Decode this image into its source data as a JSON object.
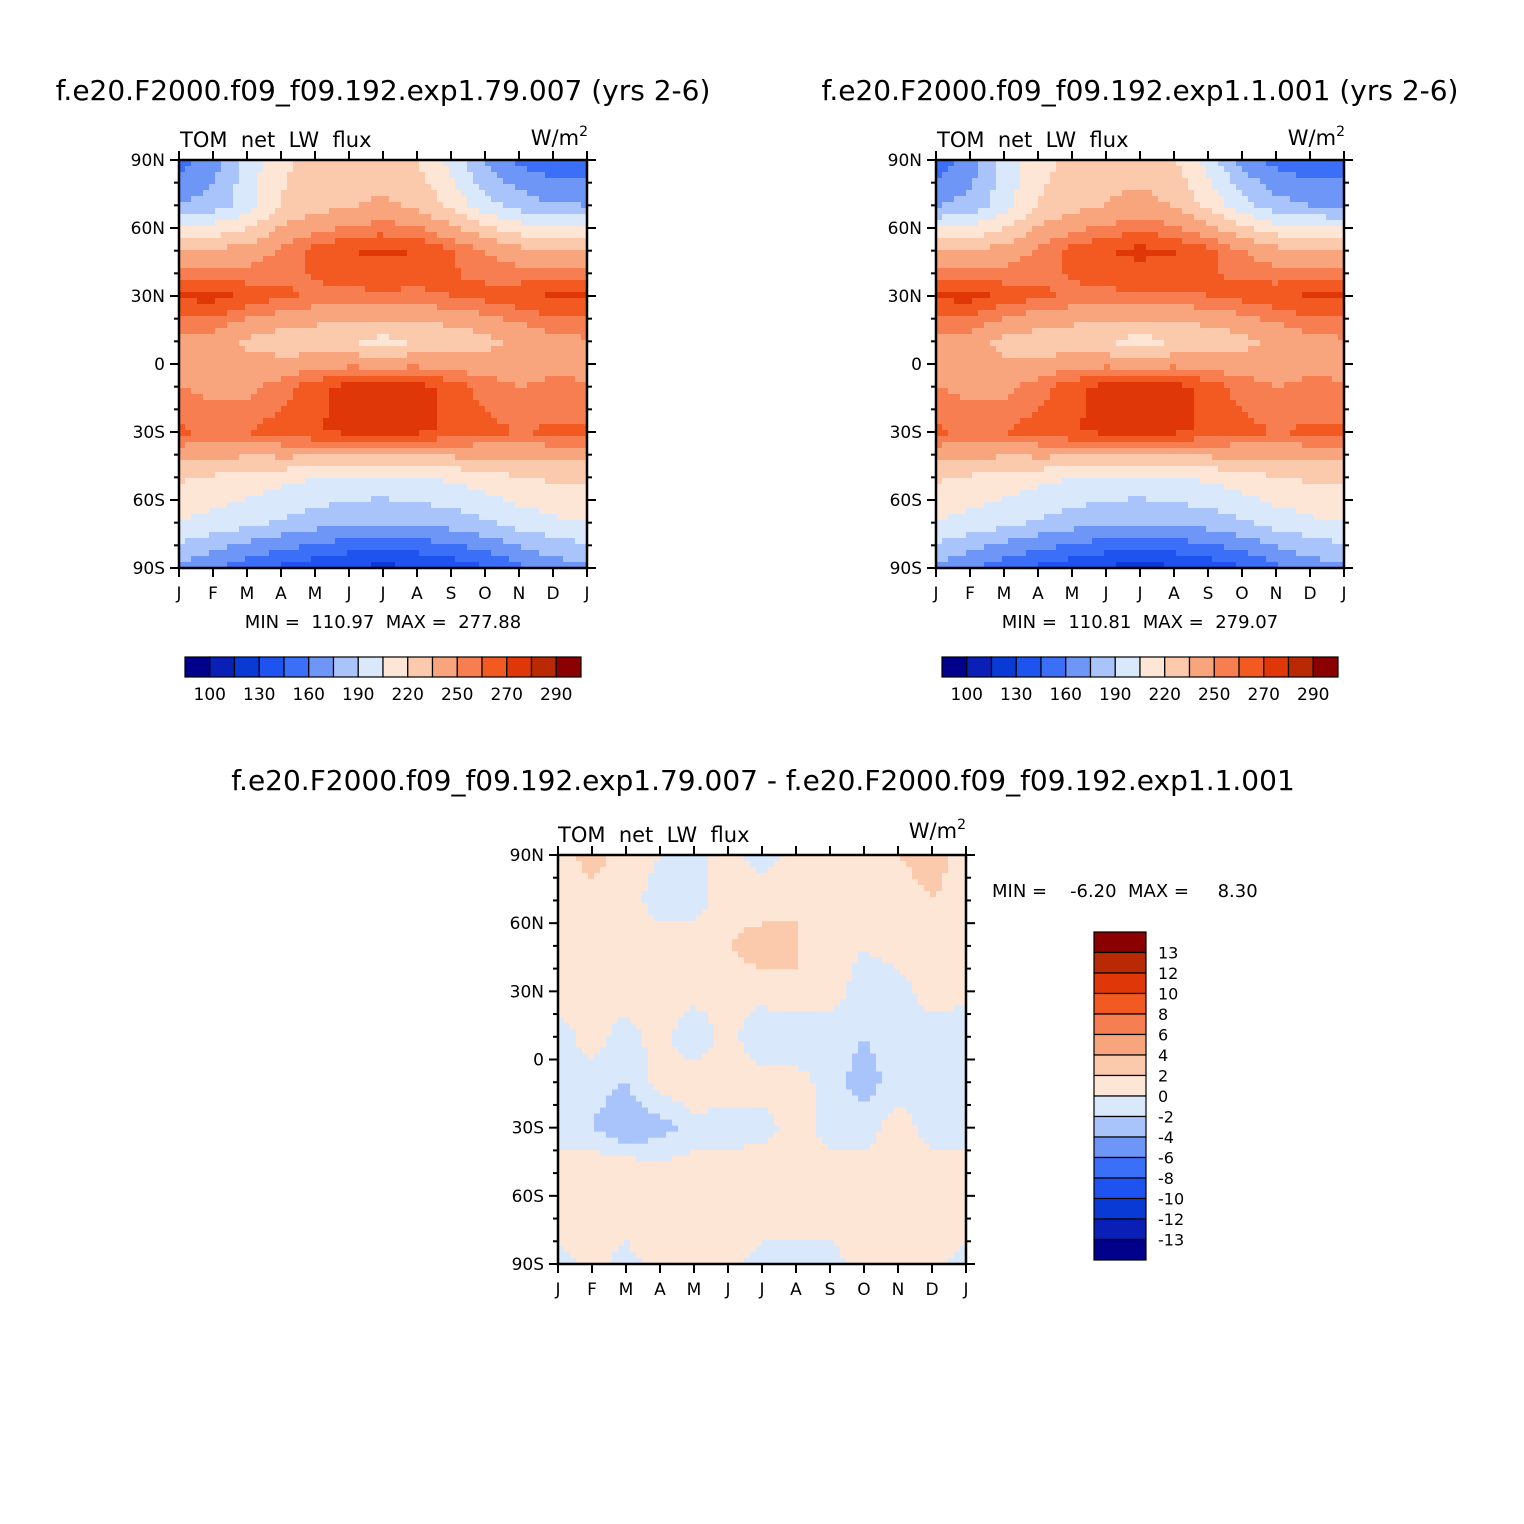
{
  "charts": [
    {
      "id": "case",
      "title": "f.e20.F2000.f09_f09.192.exp1.79.007 (yrs 2-6)",
      "left_label": "TOM  net  LW  flux",
      "units": "W/m",
      "units_sup": "2",
      "minmax": "MIN =  110.97  MAX =  277.88",
      "colorbar_labels": [
        "100",
        "130",
        "160",
        "190",
        "220",
        "250",
        "270",
        "290"
      ]
    },
    {
      "id": "control",
      "title": "f.e20.F2000.f09_f09.192.exp1.1.001 (yrs 2-6)",
      "left_label": "TOM  net  LW  flux",
      "units": "W/m",
      "units_sup": "2",
      "minmax": "MIN =  110.81  MAX =  279.07",
      "colorbar_labels": [
        "100",
        "130",
        "160",
        "190",
        "220",
        "250",
        "270",
        "290"
      ]
    },
    {
      "id": "diff",
      "title": "f.e20.F2000.f09_f09.192.exp1.79.007 - f.e20.F2000.f09_f09.192.exp1.1.001",
      "left_label": "TOM  net  LW  flux",
      "units": "W/m",
      "units_sup": "2",
      "minmax": "MIN =    -6.20  MAX =     8.30",
      "colorbar_labels": [
        "13",
        "12",
        "10",
        "8",
        "6",
        "4",
        "2",
        "0",
        "-2",
        "-4",
        "-6",
        "-8",
        "-10",
        "-12",
        "-13"
      ]
    }
  ],
  "axes": {
    "x_ticks": [
      "J",
      "F",
      "M",
      "A",
      "M",
      "J",
      "J",
      "A",
      "S",
      "O",
      "N",
      "D",
      "J"
    ],
    "y_ticks": [
      "90N",
      "60N",
      "30N",
      "0",
      "30S",
      "60S",
      "90S"
    ]
  },
  "palettes": {
    "full": [
      "#00008b",
      "#0a1fb5",
      "#0a3ad6",
      "#1f53f0",
      "#3c6ff7",
      "#6e96f7",
      "#a9c4fa",
      "#d9e8fb",
      "#fde6d6",
      "#fbcaad",
      "#f8a57e",
      "#f77e50",
      "#f25a22",
      "#df3708",
      "#b92a04",
      "#8b0000"
    ],
    "diff": [
      "#8b0000",
      "#b92a04",
      "#df3708",
      "#f25a22",
      "#f77e50",
      "#f8a57e",
      "#fbcaad",
      "#fde6d6",
      "#d9e8fb",
      "#a9c4fa",
      "#6e96f7",
      "#3c6ff7",
      "#1f53f0",
      "#0a3ad6",
      "#0a1fb5",
      "#00008b"
    ]
  },
  "chart_data": [
    {
      "type": "heatmap",
      "title": "f.e20.F2000.f09_f09.192.exp1.79.007 (yrs 2-6)",
      "units": "W/m^2",
      "x": [
        "J",
        "F",
        "M",
        "A",
        "M",
        "J",
        "J",
        "A",
        "S",
        "O",
        "N",
        "D",
        "J"
      ],
      "y": [
        "90N",
        "60N",
        "30N",
        "0",
        "30S",
        "60S",
        "90S"
      ],
      "levels": [
        100,
        115,
        130,
        145,
        160,
        175,
        190,
        205,
        220,
        235,
        250,
        260,
        270,
        280,
        290
      ],
      "values": [
        [
          152,
          168,
          196,
          218,
          222,
          224,
          224,
          220,
          200,
          172,
          156,
          150,
          152
        ],
        [
          175,
          182,
          198,
          220,
          228,
          234,
          238,
          232,
          216,
          196,
          184,
          176,
          175
        ],
        [
          235,
          238,
          240,
          252,
          264,
          270,
          272,
          270,
          262,
          250,
          240,
          236,
          235
        ],
        [
          272,
          274,
          268,
          262,
          258,
          258,
          258,
          258,
          260,
          264,
          268,
          272,
          272
        ],
        [
          248,
          244,
          232,
          226,
          222,
          219,
          215,
          219,
          222,
          230,
          238,
          245,
          248
        ],
        [
          250,
          246,
          246,
          255,
          266,
          274,
          276,
          274,
          266,
          255,
          250,
          252,
          250
        ],
        [
          262,
          258,
          260,
          266,
          270,
          272,
          272,
          272,
          268,
          264,
          260,
          262,
          262
        ],
        [
          222,
          218,
          214,
          210,
          206,
          203,
          202,
          204,
          208,
          214,
          220,
          222,
          222
        ],
        [
          205,
          200,
          194,
          188,
          182,
          178,
          176,
          178,
          182,
          188,
          196,
          202,
          205
        ],
        [
          172,
          162,
          150,
          142,
          134,
          128,
          126,
          128,
          134,
          144,
          156,
          166,
          172
        ]
      ],
      "min": 110.97,
      "max": 277.88
    },
    {
      "type": "heatmap",
      "title": "f.e20.F2000.f09_f09.192.exp1.1.001 (yrs 2-6)",
      "units": "W/m^2",
      "x": [
        "J",
        "F",
        "M",
        "A",
        "M",
        "J",
        "J",
        "A",
        "S",
        "O",
        "N",
        "D",
        "J"
      ],
      "y": [
        "90N",
        "60N",
        "30N",
        "0",
        "30S",
        "60S",
        "90S"
      ],
      "levels": [
        100,
        115,
        130,
        145,
        160,
        175,
        190,
        205,
        220,
        235,
        250,
        260,
        270,
        280,
        290
      ],
      "values": [
        [
          150,
          166,
          194,
          216,
          222,
          226,
          228,
          222,
          200,
          170,
          154,
          150,
          148
        ],
        [
          174,
          180,
          198,
          220,
          228,
          236,
          240,
          234,
          216,
          196,
          182,
          175,
          174
        ],
        [
          234,
          237,
          240,
          252,
          264,
          270,
          273,
          271,
          263,
          251,
          240,
          236,
          234
        ],
        [
          272,
          274,
          268,
          262,
          258,
          258,
          258,
          258,
          260,
          264,
          268,
          272,
          272
        ],
        [
          248,
          244,
          230,
          226,
          222,
          219,
          214,
          219,
          222,
          230,
          238,
          245,
          248
        ],
        [
          250,
          246,
          246,
          255,
          266,
          274,
          276,
          274,
          266,
          255,
          250,
          252,
          250
        ],
        [
          262,
          258,
          260,
          266,
          270,
          272,
          272,
          272,
          268,
          264,
          260,
          262,
          262
        ],
        [
          222,
          218,
          214,
          210,
          206,
          203,
          202,
          204,
          208,
          214,
          220,
          222,
          222
        ],
        [
          205,
          200,
          194,
          188,
          182,
          178,
          176,
          178,
          182,
          188,
          196,
          202,
          205
        ],
        [
          172,
          162,
          150,
          142,
          134,
          128,
          124,
          128,
          134,
          144,
          156,
          166,
          172
        ]
      ],
      "min": 110.81,
      "max": 279.07
    },
    {
      "type": "heatmap",
      "title": "f.e20.F2000.f09_f09.192.exp1.79.007 - f.e20.F2000.f09_f09.192.exp1.1.001",
      "units": "W/m^2",
      "x": [
        "J",
        "F",
        "M",
        "A",
        "M",
        "J",
        "J",
        "A",
        "S",
        "O",
        "N",
        "D",
        "J"
      ],
      "y": [
        "90N",
        "60N",
        "30N",
        "0",
        "30S",
        "60S",
        "90S"
      ],
      "levels": [
        13,
        12,
        10,
        8,
        6,
        4,
        2,
        0,
        -2,
        -4,
        -6,
        -8,
        -10,
        -12,
        -13
      ],
      "values": [
        [
          1,
          3,
          1,
          0,
          -1,
          1,
          -1,
          1,
          1,
          1,
          2,
          3,
          1
        ],
        [
          1,
          1,
          1,
          -1,
          -1,
          1,
          1,
          2,
          1,
          1,
          1,
          2,
          1
        ],
        [
          1,
          1,
          2,
          1,
          1,
          2,
          3,
          2,
          1,
          0,
          1,
          1,
          1
        ],
        [
          1,
          1,
          1,
          2,
          1,
          1,
          1,
          2,
          1,
          -1,
          -1,
          1,
          1
        ],
        [
          -1,
          1,
          -1,
          1,
          -2,
          1,
          -2,
          -2,
          -1,
          -2,
          -1,
          -1,
          -2
        ],
        [
          -1,
          -1,
          -2,
          1,
          2,
          1,
          1,
          1,
          -1,
          -3,
          -1,
          -1,
          -1
        ],
        [
          -1,
          -2,
          -4,
          -3,
          -1,
          -1,
          -1,
          1,
          -1,
          -1,
          1,
          -1,
          -1
        ],
        [
          1,
          2,
          2,
          1,
          1,
          1,
          2,
          2,
          1,
          1,
          1,
          1,
          1
        ],
        [
          1,
          1,
          1,
          2,
          1,
          1,
          1,
          1,
          1,
          1,
          1,
          1,
          1
        ],
        [
          -1,
          1,
          -1,
          1,
          1,
          1,
          -1,
          -1,
          -1,
          1,
          1,
          1,
          -1
        ]
      ],
      "min": -6.2,
      "max": 8.3
    }
  ]
}
